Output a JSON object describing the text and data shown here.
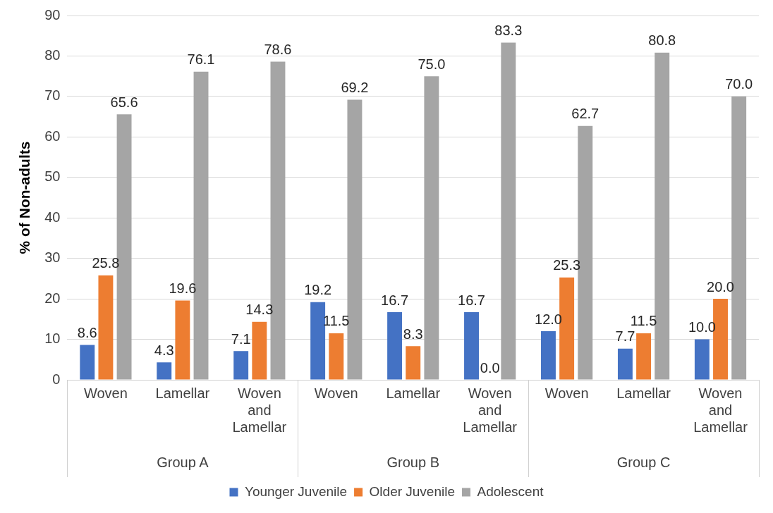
{
  "chart_data": {
    "type": "bar",
    "ylabel": "% of Non-adults",
    "categories": [
      "Woven",
      "Lamellar",
      "Woven and Lamellar",
      "Woven",
      "Lamellar",
      "Woven and Lamellar",
      "Woven",
      "Lamellar",
      "Woven and Lamellar"
    ],
    "annotations": [
      "Group A",
      "Group B",
      "Group C"
    ],
    "series": [
      {
        "name": "Younger Juvenile",
        "color": "#4472c4",
        "values": [
          8.6,
          4.3,
          7.1,
          19.2,
          16.7,
          16.7,
          12.0,
          7.7,
          10.0
        ],
        "value_labels": [
          "8.6",
          "4.3",
          "7.1",
          "19.2",
          "16.7",
          "16.7",
          "12.0",
          "7.7",
          "10.0"
        ]
      },
      {
        "name": "Older Juvenile",
        "color": "#ed7d31",
        "values": [
          25.8,
          19.6,
          14.3,
          11.5,
          8.3,
          0.0,
          25.3,
          11.5,
          20.0
        ],
        "value_labels": [
          "25.8",
          "19.6",
          "14.3",
          "11.5",
          "8.3",
          "0.0",
          "25.3",
          "11.5",
          "20.0"
        ]
      },
      {
        "name": "Adolescent",
        "color": "#a5a5a5",
        "values": [
          65.6,
          76.1,
          78.6,
          69.2,
          75.0,
          83.3,
          62.7,
          80.8,
          70.0
        ],
        "value_labels": [
          "65.6",
          "76.1",
          "78.6",
          "69.2",
          "75.0",
          "83.3",
          "62.7",
          "80.8",
          "70.0"
        ]
      }
    ],
    "ylim": [
      0,
      90
    ],
    "yticks": [
      0,
      10,
      20,
      30,
      40,
      50,
      60,
      70,
      80,
      90
    ],
    "grid": "y",
    "legend": "bottom"
  }
}
